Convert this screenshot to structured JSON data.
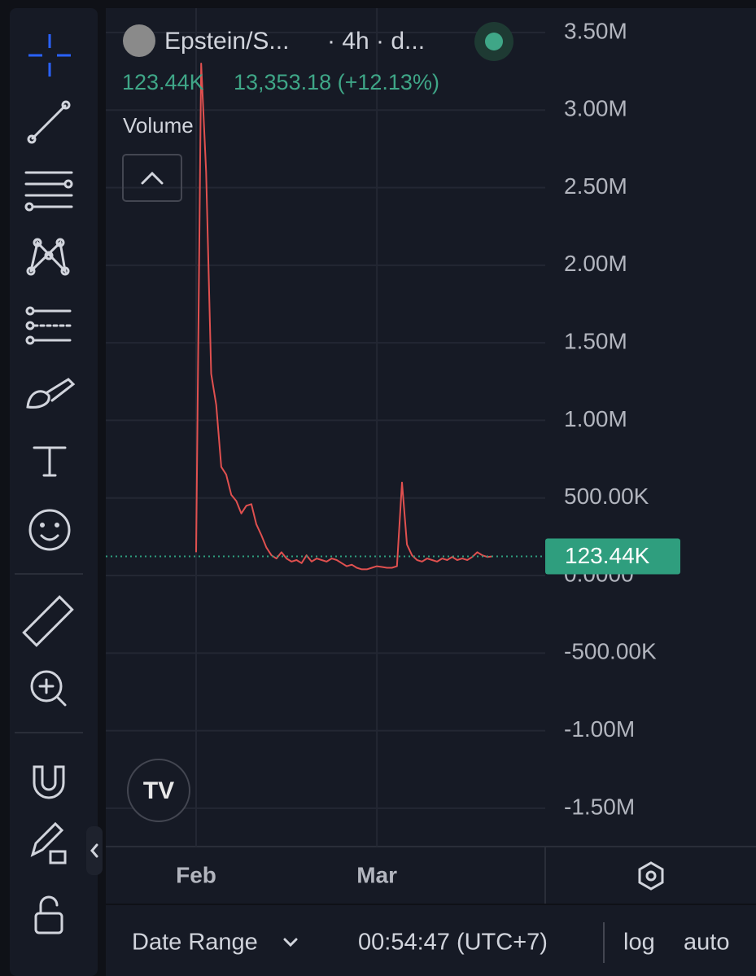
{
  "header": {
    "symbol": "Epstein/S...",
    "interval": "· 4h · d...",
    "volume_value": "123.44K",
    "price_change": "13,353.18 (+12.13%)",
    "indicator": "Volume"
  },
  "footer": {
    "date_range": "Date Range",
    "clock": "00:54:47 (UTC+7)",
    "log": "log",
    "auto": "auto"
  },
  "chart_data": {
    "type": "line",
    "categories": [
      "Feb",
      null,
      null,
      null,
      null,
      null,
      null,
      null,
      null,
      null,
      null,
      null,
      null,
      null,
      null,
      null,
      null,
      null,
      null,
      null,
      null,
      null,
      null,
      null,
      null,
      null,
      null,
      null,
      null,
      null,
      null,
      null,
      null,
      null,
      null,
      null,
      "Mar",
      null,
      null,
      null,
      null,
      null,
      null,
      null,
      null,
      null,
      null,
      null,
      null,
      null,
      null,
      null,
      null,
      null,
      null,
      null,
      null,
      null,
      null,
      null
    ],
    "series": [
      {
        "color": "#e0504f",
        "values": [
          150000,
          3300000,
          2600000,
          1300000,
          1100000,
          700000,
          650000,
          520000,
          480000,
          400000,
          450000,
          460000,
          330000,
          260000,
          180000,
          130000,
          110000,
          150000,
          110000,
          90000,
          100000,
          80000,
          130000,
          90000,
          110000,
          100000,
          90000,
          110000,
          100000,
          80000,
          60000,
          70000,
          50000,
          40000,
          40000,
          50000,
          60000,
          55000,
          50000,
          50000,
          60000,
          600000,
          200000,
          130000,
          100000,
          90000,
          110000,
          100000,
          90000,
          110000,
          100000,
          120000,
          100000,
          110000,
          100000,
          120000,
          150000,
          130000,
          120000,
          123440
        ]
      }
    ],
    "ylim": [
      -1747000,
      3657000
    ],
    "yticks": [
      {
        "value": 3500000,
        "label": "3.50M"
      },
      {
        "value": 3000000,
        "label": "3.00M"
      },
      {
        "value": 2500000,
        "label": "2.50M"
      },
      {
        "value": 2000000,
        "label": "2.00M"
      },
      {
        "value": 1500000,
        "label": "1.50M"
      },
      {
        "value": 1000000,
        "label": "1.00M"
      },
      {
        "value": 500000,
        "label": "500.00K"
      },
      {
        "value": 0,
        "label": "0.0000"
      },
      {
        "value": -500000,
        "label": "-500.00K"
      },
      {
        "value": -1000000,
        "label": "-1.00M"
      },
      {
        "value": -1500000,
        "label": "-1.50M"
      }
    ],
    "grid": true,
    "last_value": 123440,
    "last_value_label": "123.44K",
    "last_value_color": "#2f9e7e"
  }
}
